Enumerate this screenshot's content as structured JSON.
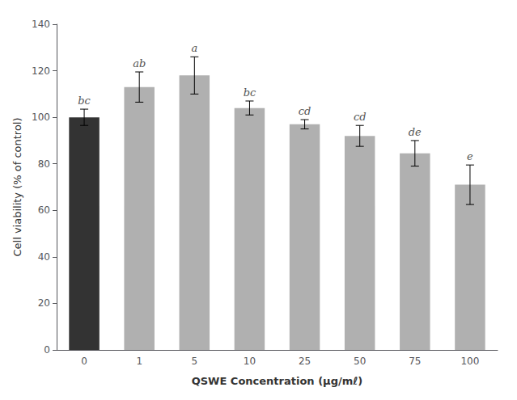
{
  "chart_data": {
    "type": "bar",
    "categories": [
      "0",
      "1",
      "5",
      "10",
      "25",
      "50",
      "75",
      "100"
    ],
    "values": [
      100,
      113,
      118,
      104,
      97,
      92,
      84.5,
      71
    ],
    "errors": [
      3.5,
      6.5,
      8,
      3,
      2,
      4.5,
      5.5,
      8.5
    ],
    "annotations": [
      "bc",
      "ab",
      "a",
      "bc",
      "cd",
      "cd",
      "de",
      "e"
    ],
    "colors": [
      "#333333",
      "#b0b0b0",
      "#b0b0b0",
      "#b0b0b0",
      "#b0b0b0",
      "#b0b0b0",
      "#b0b0b0",
      "#b0b0b0"
    ],
    "xlabel": "QSWE Concentration (μg/mℓ)",
    "ylabel": "Cell viability (% of control)",
    "ylim": [
      0,
      140
    ],
    "yticks": [
      0,
      20,
      40,
      60,
      80,
      100,
      120,
      140
    ],
    "grid": false
  }
}
